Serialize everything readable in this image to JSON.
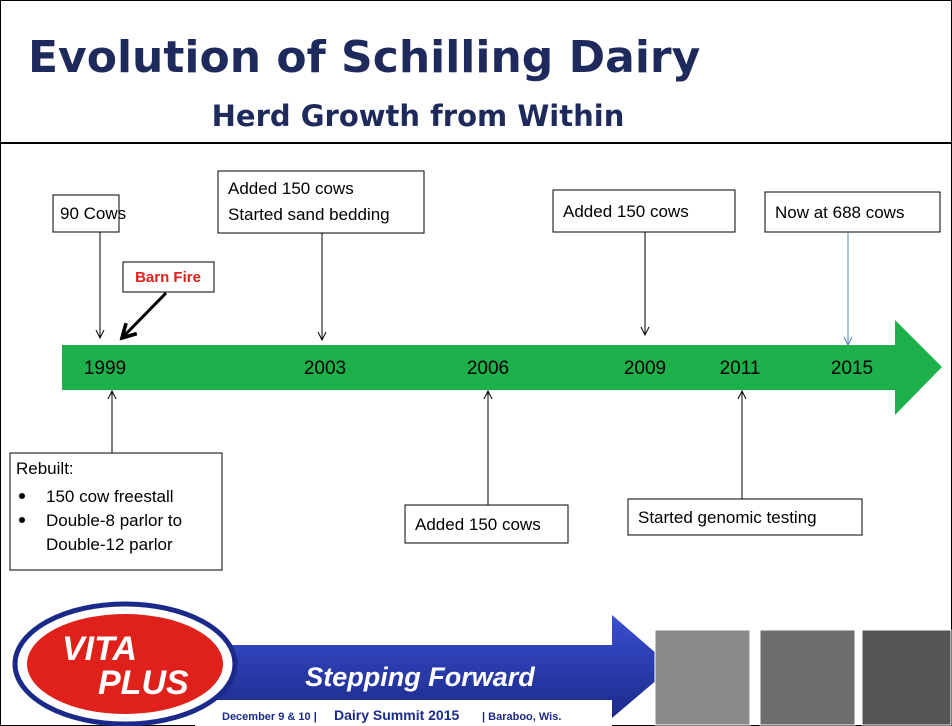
{
  "header": {
    "title": "Evolution of Schilling Dairy",
    "subtitle": "Herd Growth from Within"
  },
  "timeline": {
    "years": [
      "1999",
      "2003",
      "2006",
      "2009",
      "2011",
      "2015"
    ]
  },
  "events": {
    "cows_90": "90 Cows",
    "barn_fire": "Barn Fire",
    "y2003": [
      "Added 150 cows",
      "Started sand bedding"
    ],
    "y2009": "Added 150 cows",
    "y2015": "Now at 688 cows",
    "rebuilt": {
      "heading": "Rebuilt:",
      "bullets": [
        [
          "150 cow freestall"
        ],
        [
          "Double-8 parlor to",
          "Double-12 parlor"
        ]
      ]
    },
    "y2006": "Added 150 cows",
    "y2011": "Started genomic testing"
  },
  "footer": {
    "logo": [
      "VITA",
      "PLUS"
    ],
    "banner": "Stepping Forward",
    "tagline": [
      "December 9 & 10 |",
      "Dairy Summit 2015",
      "| Baraboo, Wis."
    ]
  }
}
